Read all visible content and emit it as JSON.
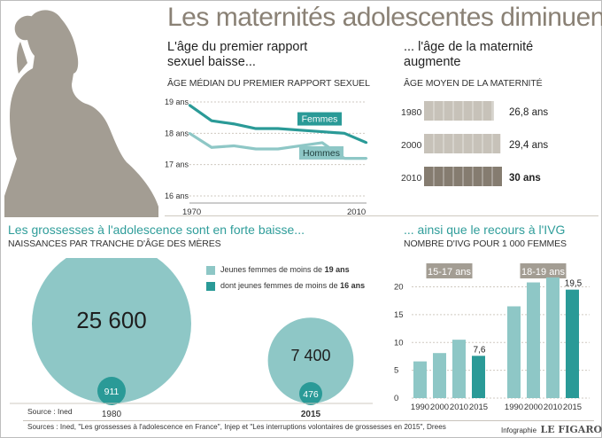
{
  "title": "Les maternités adolescentes diminuent",
  "colors": {
    "teal_dark": "#2a9a97",
    "teal_light": "#8ec7c6",
    "taupe": "#a39d93",
    "taupe_dark": "#857c70",
    "taupe_light": "#c7c2b9",
    "title_grey": "#8a8175",
    "accent_teal_text": "#2f9d9a"
  },
  "panels": {
    "sex": {
      "heading_line1": "L'âge du premier rapport",
      "heading_line2": "sexuel baisse...",
      "caption": "ÂGE MÉDIAN DU PREMIER RAPPORT SEXUEL"
    },
    "maternity": {
      "heading_line1": "... l'âge de la maternité",
      "heading_line2": "augmente",
      "caption": "ÂGE MOYEN DE LA MATERNITÉ"
    },
    "births": {
      "heading": "Les grossesses à l'adolescence sont en forte baisse...",
      "caption": "NAISSANCES PAR TRANCHE D'ÂGE DES MÈRES",
      "legend1_text": "Jeunes femmes de moins de ",
      "legend1_bold": "19 ans",
      "legend2_text": "dont jeunes femmes de moins de ",
      "legend2_bold": "16 ans",
      "source": "Source : Ined"
    },
    "ivg": {
      "heading": "... ainsi que le recours à l'IVG",
      "caption": "NOMBRE D'IVG POUR 1 000 FEMMES",
      "group1": "15-17 ans",
      "group2": "18-19 ans"
    }
  },
  "footer": {
    "sources": "Sources : Ined, \"Les grossesses à l'adolescence en France\", Injep et \"Les interruptions volontaires de grossesses en 2015\", Drees",
    "credit_small": "Infographie",
    "credit_brand": "LE FIGARO"
  },
  "chart_data": [
    {
      "type": "line",
      "x": [
        1970,
        1975,
        1980,
        1985,
        1990,
        1995,
        2000,
        2005,
        2010
      ],
      "x_ticks": [
        "1970",
        "2010"
      ],
      "y_ticks": [
        "19 ans",
        "18 ans",
        "17 ans",
        "16 ans"
      ],
      "ylim": [
        16,
        19
      ],
      "series": [
        {
          "name": "Femmes",
          "values": [
            18.9,
            18.4,
            18.3,
            18.15,
            18.15,
            18.1,
            18.05,
            18.0,
            17.7
          ]
        },
        {
          "name": "Hommes",
          "values": [
            18.0,
            17.55,
            17.6,
            17.5,
            17.5,
            17.6,
            17.7,
            17.2,
            17.2
          ]
        }
      ]
    },
    {
      "type": "bar",
      "categories": [
        "1980",
        "2000",
        "2010"
      ],
      "values": [
        26.8,
        29.4,
        30
      ],
      "value_labels": [
        "26,8 ans",
        "29,4 ans",
        "30 ans"
      ]
    },
    {
      "type": "bubble",
      "categories": [
        "1980",
        "2015"
      ],
      "series": [
        {
          "name": "Jeunes femmes de moins de 19 ans",
          "values": [
            25600,
            7400
          ],
          "labels": [
            "25 600",
            "7 400"
          ]
        },
        {
          "name": "dont jeunes femmes de moins de 16 ans",
          "values": [
            911,
            476
          ],
          "labels": [
            "911",
            "476"
          ]
        }
      ]
    },
    {
      "type": "bar",
      "y_ticks": [
        "0",
        "5",
        "10",
        "15",
        "20"
      ],
      "ylim": [
        0,
        22
      ],
      "groups": [
        {
          "name": "15-17 ans",
          "categories": [
            "1990",
            "2000",
            "2010",
            "2015"
          ],
          "values": [
            6.6,
            8.1,
            10.5,
            7.6
          ],
          "value_label": "7,6"
        },
        {
          "name": "18-19 ans",
          "categories": [
            "1990",
            "2000",
            "2010",
            "2015"
          ],
          "values": [
            16.5,
            20.8,
            21.7,
            19.5
          ],
          "value_label": "19,5"
        }
      ]
    }
  ]
}
